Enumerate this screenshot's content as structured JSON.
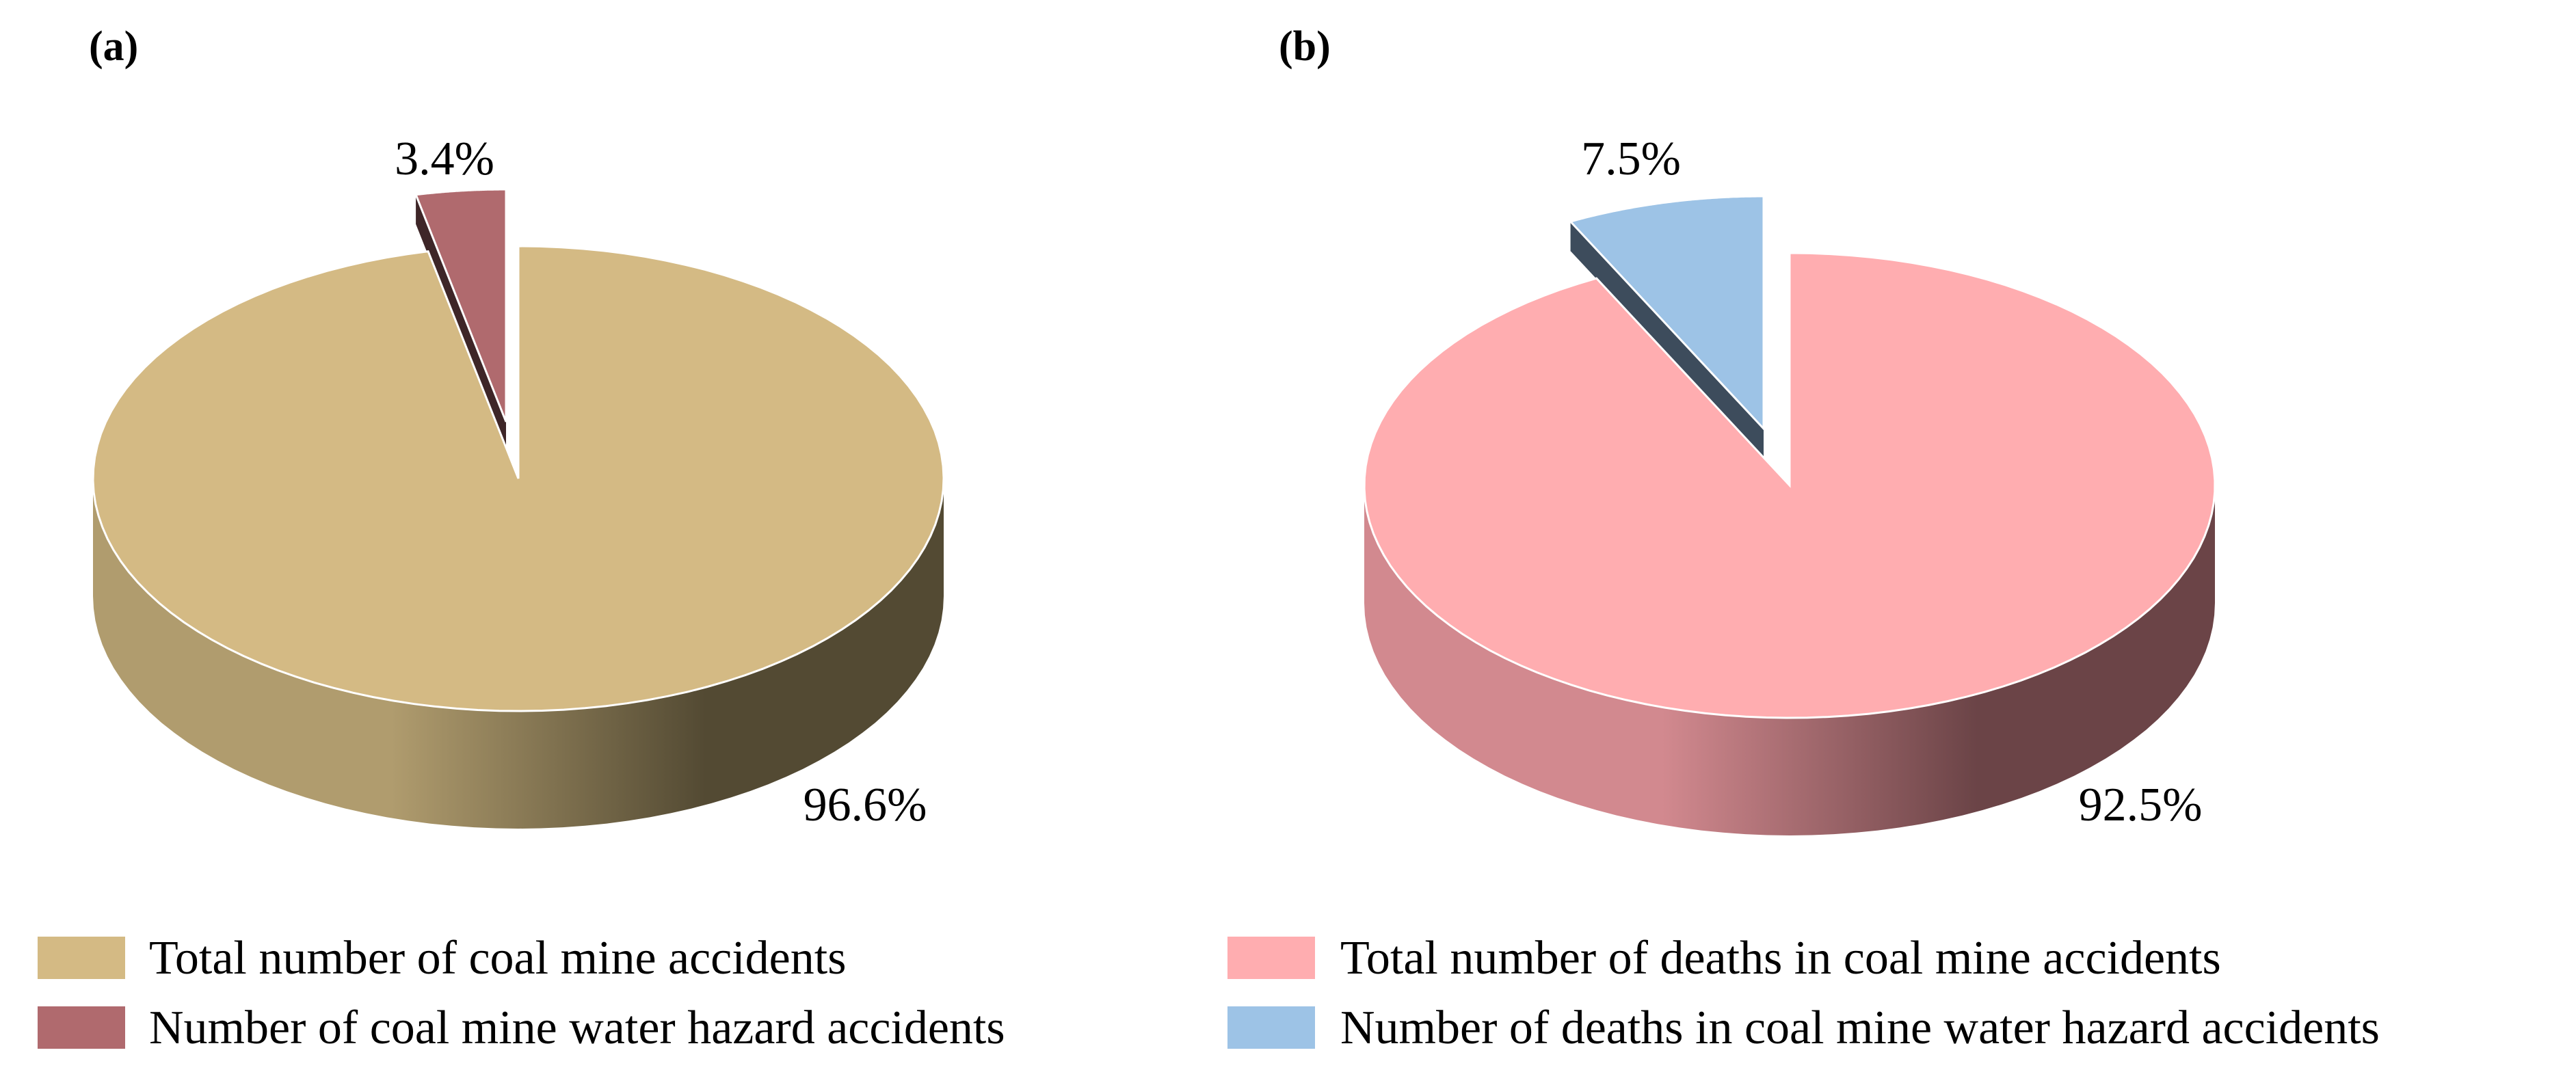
{
  "chart_data": [
    {
      "type": "pie",
      "panel_label": "(a)",
      "style": "3d-exploded",
      "slices": [
        {
          "name": "Total number of coal mine  accidents",
          "value": 96.6,
          "label": "96.6%",
          "color": "#d4ba84",
          "side_dark": "#534a33",
          "side_light": "#b09c6e"
        },
        {
          "name": "Number of coal mine water hazard accidents",
          "value": 3.4,
          "label": "3.4%",
          "color": "#b06a6e",
          "side_dark": "#3e2628",
          "side_light": "#8e5457",
          "exploded": true
        }
      ],
      "legend_position": "bottom"
    },
    {
      "type": "pie",
      "panel_label": "(b)",
      "style": "3d-exploded",
      "slices": [
        {
          "name": "Total number of deaths in coal mine  accidents",
          "value": 92.5,
          "label": "92.5%",
          "color": "#ffadb0",
          "side_dark": "#6b4447",
          "side_light": "#d2898f"
        },
        {
          "name": "Number of deaths in coal mine water hazard accidents",
          "value": 7.5,
          "label": "7.5%",
          "color": "#9dc3e6",
          "side_dark": "#3d4c5c",
          "side_light": "#7e9cb8",
          "exploded": true
        }
      ],
      "legend_position": "bottom"
    }
  ]
}
